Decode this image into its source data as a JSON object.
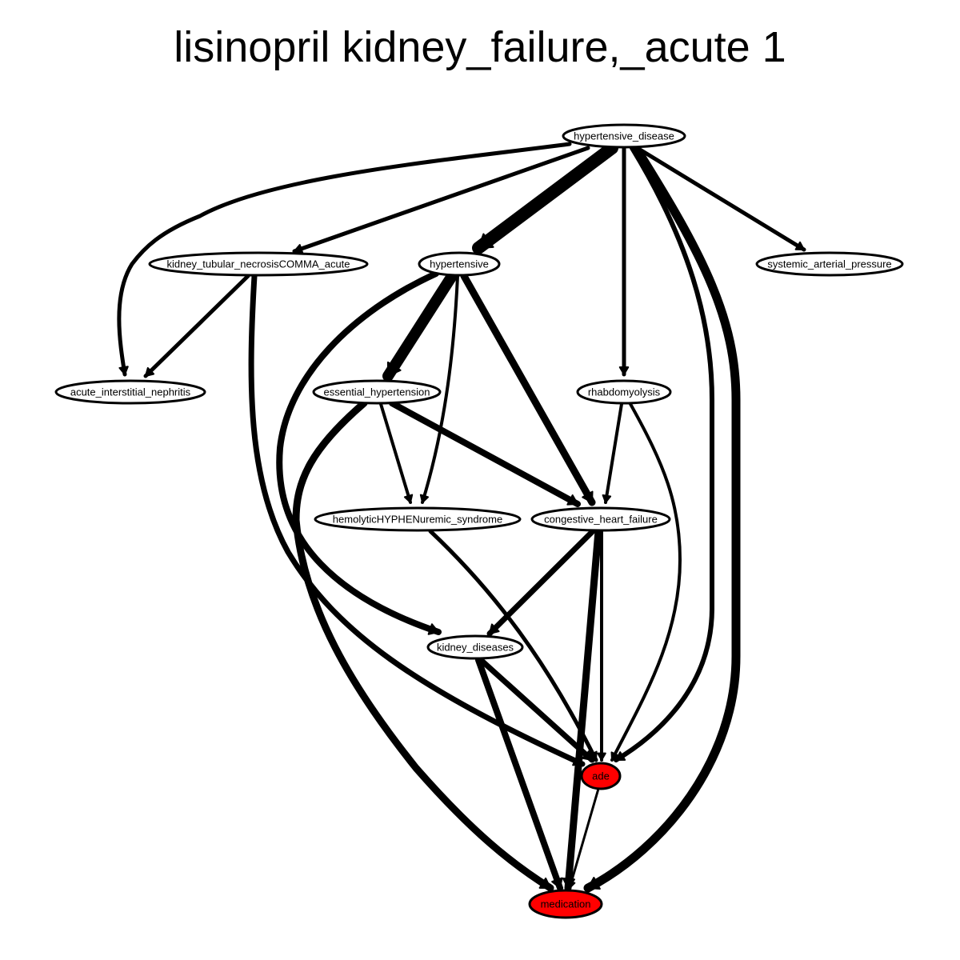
{
  "title": "lisinopril kidney_failure,_acute 1",
  "colors": {
    "highlight": "#ff0000",
    "default": "#ffffff",
    "stroke": "#000000"
  },
  "nodes": [
    {
      "id": "hypertensive_disease",
      "label": "hypertensive_disease",
      "highlight": false
    },
    {
      "id": "kidney_tubular_necrosis",
      "label": "kidney_tubular_necrosisCOMMA_acute",
      "highlight": false
    },
    {
      "id": "hypertensive",
      "label": "hypertensive",
      "highlight": false
    },
    {
      "id": "systemic_arterial_pressure",
      "label": "systemic_arterial_pressure",
      "highlight": false
    },
    {
      "id": "acute_interstitial_nephritis",
      "label": "acute_interstitial_nephritis",
      "highlight": false
    },
    {
      "id": "essential_hypertension",
      "label": "essential_hypertension",
      "highlight": false
    },
    {
      "id": "rhabdomyolysis",
      "label": "rhabdomyolysis",
      "highlight": false
    },
    {
      "id": "hemolytic_uremic_syndrome",
      "label": "hemolyticHYPHENuremic_syndrome",
      "highlight": false
    },
    {
      "id": "congestive_heart_failure",
      "label": "congestive_heart_failure",
      "highlight": false
    },
    {
      "id": "kidney_diseases",
      "label": "kidney_diseases",
      "highlight": false
    },
    {
      "id": "ade",
      "label": "ade",
      "highlight": true
    },
    {
      "id": "medication",
      "label": "medication",
      "highlight": true
    }
  ],
  "edges": [
    {
      "from": "hypertensive_disease",
      "to": "acute_interstitial_nephritis",
      "weight": 5
    },
    {
      "from": "hypertensive_disease",
      "to": "kidney_tubular_necrosis",
      "weight": 5
    },
    {
      "from": "hypertensive_disease",
      "to": "hypertensive",
      "weight": 16
    },
    {
      "from": "hypertensive_disease",
      "to": "rhabdomyolysis",
      "weight": 5
    },
    {
      "from": "hypertensive_disease",
      "to": "systemic_arterial_pressure",
      "weight": 5
    },
    {
      "from": "hypertensive_disease",
      "to": "ade",
      "weight": 6
    },
    {
      "from": "hypertensive_disease",
      "to": "medication",
      "weight": 11
    },
    {
      "from": "kidney_tubular_necrosis",
      "to": "acute_interstitial_nephritis",
      "weight": 5
    },
    {
      "from": "kidney_tubular_necrosis",
      "to": "ade",
      "weight": 7
    },
    {
      "from": "hypertensive",
      "to": "essential_hypertension",
      "weight": 14
    },
    {
      "from": "hypertensive",
      "to": "hemolytic_uremic_syndrome",
      "weight": 4
    },
    {
      "from": "hypertensive",
      "to": "congestive_heart_failure",
      "weight": 9
    },
    {
      "from": "hypertensive",
      "to": "kidney_diseases",
      "weight": 8
    },
    {
      "from": "essential_hypertension",
      "to": "hemolytic_uremic_syndrome",
      "weight": 4
    },
    {
      "from": "essential_hypertension",
      "to": "congestive_heart_failure",
      "weight": 8
    },
    {
      "from": "essential_hypertension",
      "to": "medication",
      "weight": 9
    },
    {
      "from": "rhabdomyolysis",
      "to": "congestive_heart_failure",
      "weight": 4
    },
    {
      "from": "rhabdomyolysis",
      "to": "ade",
      "weight": 4
    },
    {
      "from": "hemolytic_uremic_syndrome",
      "to": "ade",
      "weight": 5
    },
    {
      "from": "congestive_heart_failure",
      "to": "kidney_diseases",
      "weight": 7
    },
    {
      "from": "congestive_heart_failure",
      "to": "ade",
      "weight": 4
    },
    {
      "from": "congestive_heart_failure",
      "to": "medication",
      "weight": 9
    },
    {
      "from": "kidney_diseases",
      "to": "ade",
      "weight": 7
    },
    {
      "from": "kidney_diseases",
      "to": "medication",
      "weight": 8
    },
    {
      "from": "ade",
      "to": "medication",
      "weight": 3
    }
  ]
}
